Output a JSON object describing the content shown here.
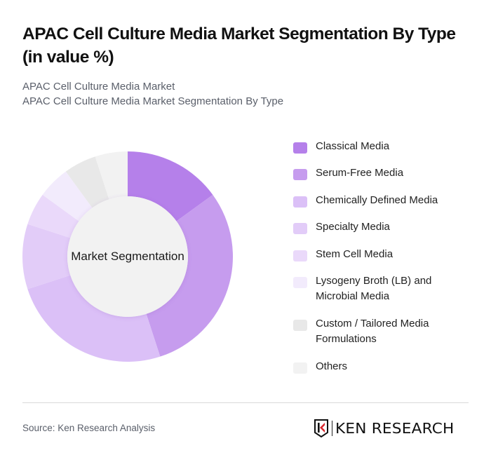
{
  "header": {
    "title": "APAC Cell Culture Media Market Segmentation By Type (in value %)",
    "subtitle_line1": "APAC Cell Culture Media Market",
    "subtitle_line2": "APAC Cell Culture Media Market Segmentation By Type"
  },
  "chart": {
    "center_label": "Market Segmentation"
  },
  "legend": {
    "items": [
      {
        "label": "Classical Media",
        "color": "#b580ea"
      },
      {
        "label": "Serum-Free Media",
        "color": "#c69cee"
      },
      {
        "label": "Chemically Defined Media",
        "color": "#dbc0f7"
      },
      {
        "label": "Specialty Media",
        "color": "#e2ccf8"
      },
      {
        "label": "Stem Cell Media",
        "color": "#ead9fa"
      },
      {
        "label": "Lysogeny Broth (LB) and Microbial Media",
        "color": "#f2ebfc"
      },
      {
        "label": "Custom / Tailored Media Formulations",
        "color": "#e8e8e8"
      },
      {
        "label": "Others",
        "color": "#f2f2f2"
      }
    ]
  },
  "footer": {
    "source": "Source: Ken Research Analysis",
    "logo_text": "KEN RESEARCH"
  },
  "chart_data": {
    "type": "pie",
    "subtype": "donut",
    "title": "APAC Cell Culture Media Market Segmentation By Type (in value %)",
    "center_label": "Market Segmentation",
    "categories": [
      "Classical Media",
      "Serum-Free Media",
      "Chemically Defined Media",
      "Specialty Media",
      "Stem Cell Media",
      "Lysogeny Broth (LB) and Microbial Media",
      "Custom / Tailored Media Formulations",
      "Others"
    ],
    "values": [
      15,
      30,
      25,
      10,
      5,
      5,
      5,
      5
    ],
    "colors": [
      "#b580ea",
      "#c69cee",
      "#dbc0f7",
      "#e2ccf8",
      "#ead9fa",
      "#f2ebfc",
      "#e8e8e8",
      "#f2f2f2"
    ],
    "unit": "%",
    "legend_position": "right",
    "start_angle": "12 o'clock, clockwise"
  }
}
